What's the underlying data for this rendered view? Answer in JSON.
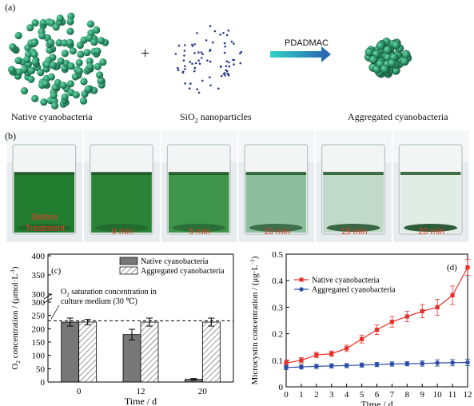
{
  "panel_a": {
    "tag": "(a)",
    "native_label": "Native cyanobacteria",
    "plus": "+",
    "sio2_label_prefix": "SiO",
    "sio2_label_sub": "2",
    "sio2_label_suffix": " nanoparticles",
    "arrow_label": "PDADMAC",
    "aggregated_label": "Aggregated cyanobacteria",
    "colors": {
      "cell": "#2e9a6e",
      "cell_dark": "#1d6d4c",
      "dot": "#2b3a8c",
      "arrow_start": "#2fd3c7",
      "arrow_end": "#2a5fb0"
    }
  },
  "panel_b": {
    "tag": "(b)",
    "beakers": [
      {
        "caption_line1": "Before",
        "caption_line2": "Treatment",
        "liquid": "#1f7a2c",
        "turbidity": 0.95
      },
      {
        "caption_line1": "0 min",
        "caption_line2": "",
        "liquid": "#227f30",
        "turbidity": 0.9
      },
      {
        "caption_line1": "5 min",
        "caption_line2": "",
        "liquid": "#2c8a3a",
        "turbidity": 0.8
      },
      {
        "caption_line1": "10 min",
        "caption_line2": "",
        "liquid": "#6fae86",
        "turbidity": 0.5
      },
      {
        "caption_line1": "15 min",
        "caption_line2": "",
        "liquid": "#a9cdb3",
        "turbidity": 0.3
      },
      {
        "caption_line1": "20 min",
        "caption_line2": "",
        "liquid": "#d7e7dd",
        "turbidity": 0.15
      }
    ]
  },
  "chart_data": [
    {
      "type": "bar",
      "tag": "(c)",
      "ylabel_main": "O",
      "ylabel_sub": "2",
      "ylabel_rest": " concentration / (μmol·L",
      "ylabel_sup": "-1",
      "ylabel_end": ")",
      "xlabel": "Time / d",
      "categories": [
        "0",
        "12",
        "20"
      ],
      "ylim": [
        0,
        300
      ],
      "yticks": [
        "0",
        "50",
        "100",
        "150",
        "200",
        "250",
        "300"
      ],
      "break_ticks": [
        "400",
        "350",
        "300"
      ],
      "series": [
        {
          "name": "Native cyanobacteria",
          "values": [
            225,
            178,
            10
          ],
          "errors": [
            15,
            20,
            3
          ],
          "color": "#777777",
          "pattern": "solid"
        },
        {
          "name": "Aggregated cyanobacteria",
          "values": [
            225,
            225,
            225
          ],
          "errors": [
            10,
            15,
            15
          ],
          "color": "#ffffff",
          "pattern": "hatch"
        }
      ],
      "reference_line": {
        "value": 230,
        "label_line1_prefix": "O",
        "label_line1_sub": "2",
        "label_line1_rest": " saturation concentration in",
        "label_line2": "culture medium (30 ℃)"
      },
      "legend": "top-right"
    },
    {
      "type": "line",
      "tag": "(d)",
      "ylabel": "Microcystin concentration / (μg·L",
      "ylabel_sup": "−1",
      "ylabel_end": ")",
      "xlabel": "Time / d",
      "x": [
        0,
        1,
        2,
        3,
        4,
        5,
        6,
        7,
        8,
        9,
        10,
        11,
        12
      ],
      "xticks": [
        "0",
        "1",
        "2",
        "3",
        "4",
        "5",
        "6",
        "7",
        "8",
        "9",
        "10",
        "11",
        "12"
      ],
      "ylim": [
        0,
        0.5
      ],
      "yticks": [
        "0",
        "0.1",
        "0.2",
        "0.3",
        "0.4",
        "0.5"
      ],
      "series": [
        {
          "name": "Native cyanobacteria",
          "color": "#e8302a",
          "marker": "square",
          "values": [
            0.09,
            0.1,
            0.12,
            0.125,
            0.145,
            0.18,
            0.215,
            0.245,
            0.265,
            0.285,
            0.3,
            0.345,
            0.45
          ],
          "errors": [
            0.01,
            0.01,
            0.01,
            0.01,
            0.012,
            0.015,
            0.018,
            0.02,
            0.02,
            0.025,
            0.03,
            0.035,
            0.03
          ]
        },
        {
          "name": "Aggregated cyanobacteria",
          "color": "#2a4ca8",
          "marker": "circle",
          "values": [
            0.073,
            0.075,
            0.077,
            0.079,
            0.08,
            0.082,
            0.084,
            0.086,
            0.087,
            0.088,
            0.09,
            0.091,
            0.092
          ],
          "errors": [
            0.008,
            0.008,
            0.008,
            0.008,
            0.008,
            0.008,
            0.008,
            0.008,
            0.008,
            0.01,
            0.012,
            0.012,
            0.012
          ]
        }
      ],
      "legend": "top-left"
    }
  ]
}
